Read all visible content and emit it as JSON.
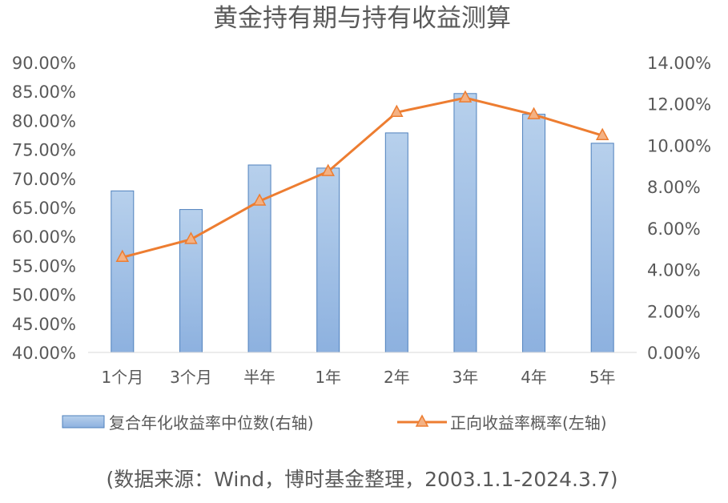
{
  "chart_data": {
    "type": "bar+line",
    "title": "黄金持有期与持有收益测算",
    "categories": [
      "1个月",
      "3个月",
      "半年",
      "1年",
      "2年",
      "3年",
      "4年",
      "5年"
    ],
    "series": [
      {
        "name": "复合年化收益率中位数(右轴)",
        "type": "bar",
        "axis": "right",
        "values": [
          7.8,
          6.9,
          9.05,
          8.9,
          10.6,
          12.5,
          11.5,
          10.1
        ]
      },
      {
        "name": "正向收益率概率(左轴)",
        "type": "line",
        "axis": "left",
        "values": [
          56.4,
          59.5,
          66.1,
          71.2,
          81.4,
          83.9,
          81.0,
          77.4
        ]
      }
    ],
    "left_axis": {
      "ylim": [
        40,
        90
      ],
      "ticks": [
        "40.00%",
        "45.00%",
        "50.00%",
        "55.00%",
        "60.00%",
        "65.00%",
        "70.00%",
        "75.00%",
        "80.00%",
        "85.00%",
        "90.00%"
      ]
    },
    "right_axis": {
      "ylim": [
        0,
        14
      ],
      "ticks": [
        "0.00%",
        "2.00%",
        "4.00%",
        "6.00%",
        "8.00%",
        "10.00%",
        "12.00%",
        "14.00%"
      ]
    },
    "legend_position": "bottom",
    "grid": false,
    "source_note": "(数据来源：Wind，博时基金整理，2003.1.1-2024.3.7)",
    "colors": {
      "bar_top": "#b4cdea",
      "bar_bottom": "#8fb3e0",
      "bar_border": "#4f81bd",
      "line": "#ed7d31"
    }
  }
}
